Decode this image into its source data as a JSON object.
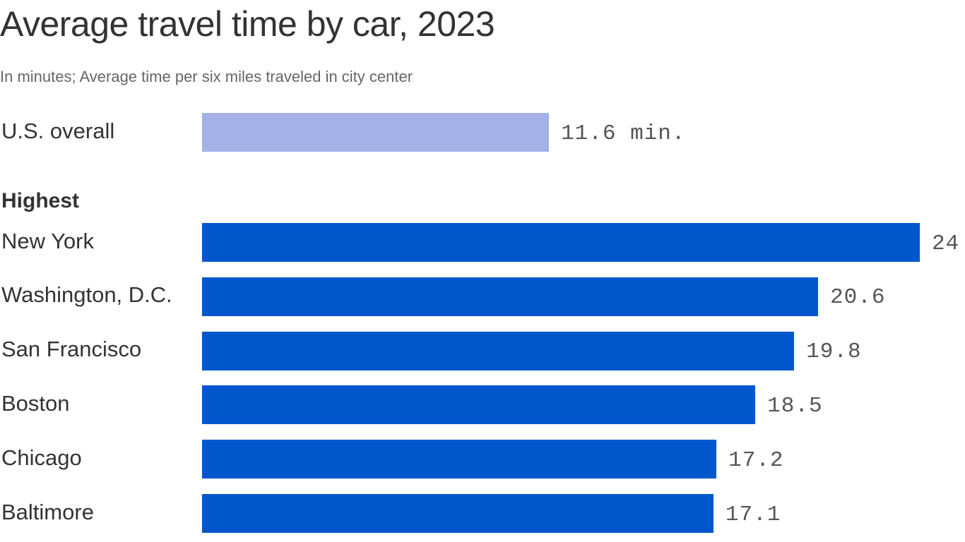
{
  "title": "Average travel time by car, 2023",
  "subtitle": "In minutes; Average time per six miles traveled in city center",
  "chart_data": {
    "type": "bar",
    "orientation": "horizontal",
    "title": "Average travel time by car, 2023",
    "subtitle": "In minutes; Average time per six miles traveled in city center",
    "unit_suffix_first": " min.",
    "colors": {
      "overall": "#a3b1e6",
      "highest": "#0057cc"
    },
    "overall": {
      "category": "U.S. overall",
      "value": 11.6,
      "label": "11.6 min."
    },
    "group_label": "Highest",
    "categories": [
      "New York",
      "Washington, D.C.",
      "San Francisco",
      "Boston",
      "Chicago",
      "Baltimore"
    ],
    "values": [
      24,
      20.6,
      19.8,
      18.5,
      17.2,
      17.1
    ],
    "value_labels": [
      "24",
      "20.6",
      "19.8",
      "18.5",
      "17.2",
      "17.1"
    ],
    "xlim": [
      0,
      24
    ],
    "grid": false,
    "legend": "none"
  }
}
